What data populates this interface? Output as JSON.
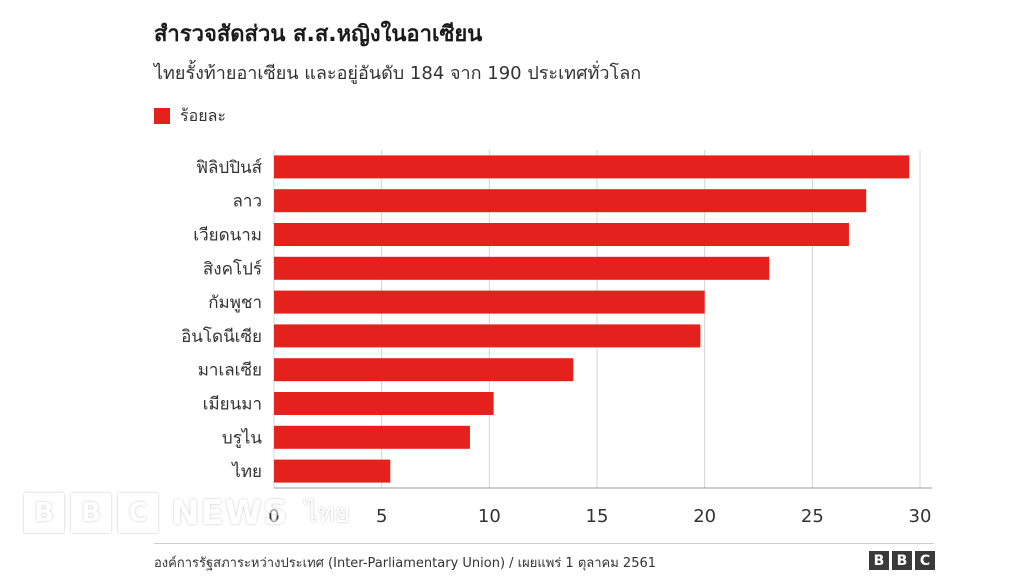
{
  "header": {
    "title": "สำรวจสัดส่วน ส.ส.หญิงในอาเซียน",
    "subtitle": "ไทยรั้งท้ายอาเซียน และอยู่อันดับ 184 จาก 190 ประเทศทั่วโลก"
  },
  "legend": {
    "label": "ร้อยละ",
    "color": "#e4211c"
  },
  "chart_data": {
    "type": "bar",
    "orientation": "horizontal",
    "title": "สำรวจสัดส่วน ส.ส.หญิงในอาเซียน",
    "subtitle": "ไทยรั้งท้ายอาเซียน และอยู่อันดับ 184 จาก 190 ประเทศทั่วโลก",
    "categories": [
      "ฟิลิปปินส์",
      "ลาว",
      "เวียดนาม",
      "สิงคโปร์",
      "กัมพูชา",
      "อินโดนีเซีย",
      "มาเลเซีย",
      "เมียนมา",
      "บรูไน",
      "ไทย"
    ],
    "series": [
      {
        "name": "ร้อยละ",
        "color": "#e4211c",
        "values": [
          29.5,
          27.5,
          26.7,
          23.0,
          20.0,
          19.8,
          13.9,
          10.2,
          9.1,
          5.4
        ]
      }
    ],
    "xlim": [
      0,
      30
    ],
    "xticks": [
      "0",
      "5",
      "10",
      "15",
      "20",
      "25",
      "30"
    ],
    "grid": true,
    "legend_position": "top-left"
  },
  "watermark": {
    "letters": [
      "B",
      "B",
      "C"
    ],
    "word": "NEWS",
    "lang": "ไทย"
  },
  "footer": {
    "source": "องค์การรัฐสภาระหว่างประเทศ (Inter-Parliamentary Union) / เผยแพร่ 1 ตุลาคม 2561",
    "logo_letters": [
      "B",
      "B",
      "C"
    ]
  }
}
